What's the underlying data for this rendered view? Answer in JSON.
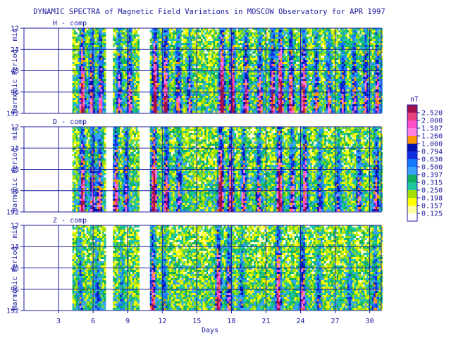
{
  "chart_data": {
    "type": "heatmap",
    "title": "DYNAMIC SPECTRA of Magnetic Field Variations in MOSCOW Observatory for APR 1997",
    "xlabel": "Days",
    "ylabel": "Harmonic Period, min",
    "x_ticks": [
      3,
      6,
      9,
      12,
      15,
      18,
      21,
      24,
      27,
      30
    ],
    "xlim": [
      0,
      31
    ],
    "y_ticks": [
      12,
      24,
      48,
      96,
      192
    ],
    "y_scale": "log",
    "grid": true,
    "legend_unit": "nT",
    "legend_levels": [
      "2.520",
      "2.000",
      "1.587",
      "1.260",
      "1.000",
      "0.794",
      "0.630",
      "0.500",
      "0.397",
      "0.315",
      "0.250",
      "0.198",
      "0.157",
      "0.125"
    ],
    "legend_colors": [
      "#a0104a",
      "#e8407a",
      "#ff50c8",
      "#ff80e0",
      "#ff9800",
      "#0010b0",
      "#1030e0",
      "#1478ff",
      "#3ca0ff",
      "#10b060",
      "#20c8a0",
      "#a0e000",
      "#ffff00",
      "#ffffa0"
    ],
    "data_start_day": 4.2,
    "gaps": [
      [
        7.1,
        7.6
      ],
      [
        10.0,
        10.9
      ]
    ],
    "panels": [
      {
        "label": "H - comp",
        "activity_peaks": [
          {
            "day": 5.0,
            "level": 0.8
          },
          {
            "day": 5.8,
            "level": 0.6
          },
          {
            "day": 6.6,
            "level": 0.6
          },
          {
            "day": 8.2,
            "level": 0.5
          },
          {
            "day": 9.1,
            "level": 0.6
          },
          {
            "day": 11.3,
            "level": 0.95
          },
          {
            "day": 12.2,
            "level": 0.8
          },
          {
            "day": 13.3,
            "level": 0.55
          },
          {
            "day": 14.3,
            "level": 0.45
          },
          {
            "day": 17.1,
            "level": 1.0
          },
          {
            "day": 18.0,
            "level": 0.9
          },
          {
            "day": 19.2,
            "level": 0.7
          },
          {
            "day": 20.4,
            "level": 0.6
          },
          {
            "day": 21.5,
            "level": 0.7
          },
          {
            "day": 22.2,
            "level": 0.95
          },
          {
            "day": 23.1,
            "level": 0.7
          },
          {
            "day": 24.2,
            "level": 0.8
          },
          {
            "day": 25.3,
            "level": 0.5
          },
          {
            "day": 26.4,
            "level": 0.5
          },
          {
            "day": 27.6,
            "level": 0.5
          },
          {
            "day": 28.6,
            "level": 0.5
          },
          {
            "day": 29.6,
            "level": 0.55
          },
          {
            "day": 30.6,
            "level": 0.6
          }
        ]
      },
      {
        "label": "D - comp",
        "activity_peaks": [
          {
            "day": 5.0,
            "level": 0.8
          },
          {
            "day": 5.9,
            "level": 0.6
          },
          {
            "day": 6.5,
            "level": 0.55
          },
          {
            "day": 7.9,
            "level": 0.7
          },
          {
            "day": 8.8,
            "level": 0.5
          },
          {
            "day": 11.2,
            "level": 1.0
          },
          {
            "day": 12.3,
            "level": 0.7
          },
          {
            "day": 13.4,
            "level": 0.45
          },
          {
            "day": 17.0,
            "level": 1.0
          },
          {
            "day": 17.9,
            "level": 0.8
          },
          {
            "day": 19.0,
            "level": 0.55
          },
          {
            "day": 20.3,
            "level": 0.5
          },
          {
            "day": 22.1,
            "level": 0.95
          },
          {
            "day": 23.2,
            "level": 0.6
          },
          {
            "day": 24.3,
            "level": 0.7
          },
          {
            "day": 25.6,
            "level": 0.4
          },
          {
            "day": 27.2,
            "level": 0.4
          },
          {
            "day": 29.0,
            "level": 0.45
          },
          {
            "day": 30.5,
            "level": 0.6
          }
        ]
      },
      {
        "label": "Z - comp",
        "activity_peaks": [
          {
            "day": 4.8,
            "level": 0.3
          },
          {
            "day": 6.3,
            "level": 0.25
          },
          {
            "day": 8.4,
            "level": 0.2
          },
          {
            "day": 11.1,
            "level": 0.65
          },
          {
            "day": 12.1,
            "level": 0.3
          },
          {
            "day": 16.8,
            "level": 0.8
          },
          {
            "day": 17.7,
            "level": 0.55
          },
          {
            "day": 18.8,
            "level": 0.3
          },
          {
            "day": 22.0,
            "level": 0.75
          },
          {
            "day": 24.1,
            "level": 0.6
          },
          {
            "day": 25.5,
            "level": 0.3
          },
          {
            "day": 28.2,
            "level": 0.25
          },
          {
            "day": 30.4,
            "level": 0.35
          }
        ]
      }
    ]
  }
}
